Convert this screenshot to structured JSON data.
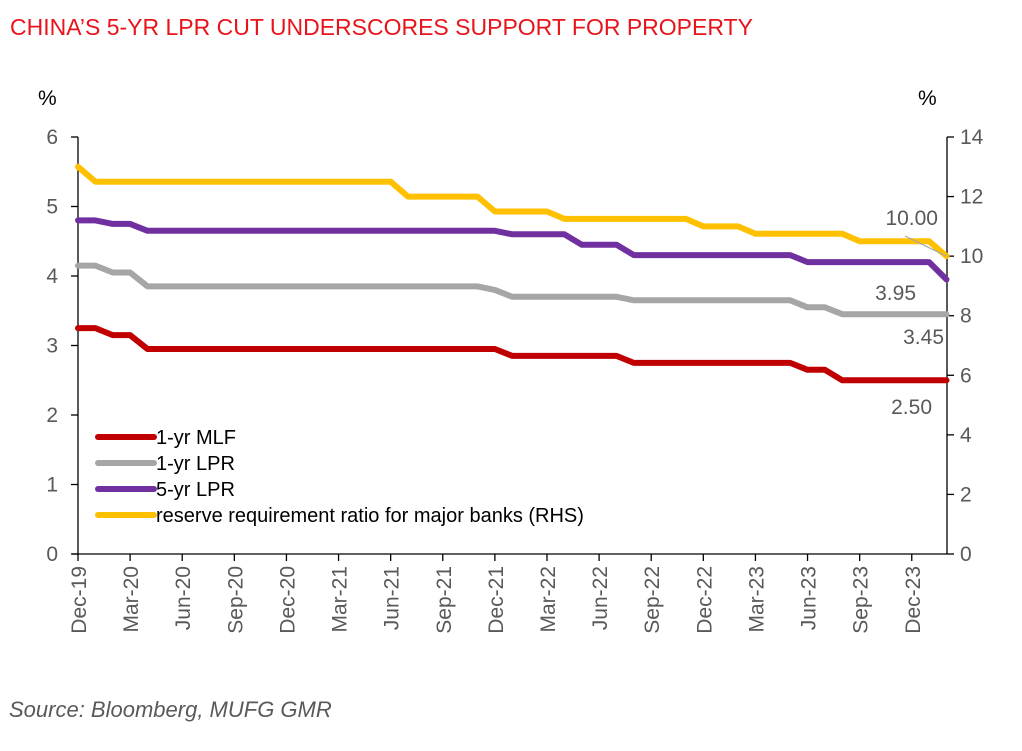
{
  "title": "CHINA’S 5-YR LPR CUT UNDERSCORES SUPPORT FOR PROPERTY",
  "source": "Source: Bloomberg, MUFG GMR",
  "chart_data": {
    "type": "line",
    "title": "CHINA’S 5-YR LPR CUT UNDERSCORES SUPPORT FOR PROPERTY",
    "ylabel": "%",
    "y2label": "%",
    "ylim": [
      0,
      6
    ],
    "y2lim": [
      0,
      14
    ],
    "yticks": [
      0,
      1,
      2,
      3,
      4,
      5,
      6
    ],
    "y2ticks": [
      0,
      2,
      4,
      6,
      8,
      10,
      12,
      14
    ],
    "grid": false,
    "legend_position": "bottom-left",
    "xtick_labels": [
      "Dec-19",
      "Mar-20",
      "Jun-20",
      "Sep-20",
      "Dec-20",
      "Mar-21",
      "Jun-21",
      "Sep-21",
      "Dec-21",
      "Mar-22",
      "Jun-22",
      "Sep-22",
      "Dec-22",
      "Mar-23",
      "Jun-23",
      "Sep-23",
      "Dec-23"
    ],
    "x": [
      "Dec-19",
      "Jan-20",
      "Feb-20",
      "Mar-20",
      "Apr-20",
      "May-20",
      "Jun-20",
      "Jul-20",
      "Aug-20",
      "Sep-20",
      "Oct-20",
      "Nov-20",
      "Dec-20",
      "Jan-21",
      "Feb-21",
      "Mar-21",
      "Apr-21",
      "May-21",
      "Jun-21",
      "Jul-21",
      "Aug-21",
      "Sep-21",
      "Oct-21",
      "Nov-21",
      "Dec-21",
      "Jan-22",
      "Feb-22",
      "Mar-22",
      "Apr-22",
      "May-22",
      "Jun-22",
      "Jul-22",
      "Aug-22",
      "Sep-22",
      "Oct-22",
      "Nov-22",
      "Dec-22",
      "Jan-23",
      "Feb-23",
      "Mar-23",
      "Apr-23",
      "May-23",
      "Jun-23",
      "Jul-23",
      "Aug-23",
      "Sep-23",
      "Oct-23",
      "Nov-23",
      "Dec-23",
      "Jan-24",
      "Feb-24"
    ],
    "series": [
      {
        "name": "1-yr MLF",
        "axis": "left",
        "color": "#c00000",
        "values": [
          3.25,
          3.25,
          3.15,
          3.15,
          2.95,
          2.95,
          2.95,
          2.95,
          2.95,
          2.95,
          2.95,
          2.95,
          2.95,
          2.95,
          2.95,
          2.95,
          2.95,
          2.95,
          2.95,
          2.95,
          2.95,
          2.95,
          2.95,
          2.95,
          2.95,
          2.85,
          2.85,
          2.85,
          2.85,
          2.85,
          2.85,
          2.85,
          2.75,
          2.75,
          2.75,
          2.75,
          2.75,
          2.75,
          2.75,
          2.75,
          2.75,
          2.75,
          2.65,
          2.65,
          2.5,
          2.5,
          2.5,
          2.5,
          2.5,
          2.5,
          2.5
        ]
      },
      {
        "name": "1-yr LPR",
        "axis": "left",
        "color": "#a6a6a6",
        "values": [
          4.15,
          4.15,
          4.05,
          4.05,
          3.85,
          3.85,
          3.85,
          3.85,
          3.85,
          3.85,
          3.85,
          3.85,
          3.85,
          3.85,
          3.85,
          3.85,
          3.85,
          3.85,
          3.85,
          3.85,
          3.85,
          3.85,
          3.85,
          3.85,
          3.8,
          3.7,
          3.7,
          3.7,
          3.7,
          3.7,
          3.7,
          3.7,
          3.65,
          3.65,
          3.65,
          3.65,
          3.65,
          3.65,
          3.65,
          3.65,
          3.65,
          3.65,
          3.55,
          3.55,
          3.45,
          3.45,
          3.45,
          3.45,
          3.45,
          3.45,
          3.45
        ]
      },
      {
        "name": "5-yr LPR",
        "axis": "left",
        "color": "#7030a0",
        "values": [
          4.8,
          4.8,
          4.75,
          4.75,
          4.65,
          4.65,
          4.65,
          4.65,
          4.65,
          4.65,
          4.65,
          4.65,
          4.65,
          4.65,
          4.65,
          4.65,
          4.65,
          4.65,
          4.65,
          4.65,
          4.65,
          4.65,
          4.65,
          4.65,
          4.65,
          4.6,
          4.6,
          4.6,
          4.6,
          4.45,
          4.45,
          4.45,
          4.3,
          4.3,
          4.3,
          4.3,
          4.3,
          4.3,
          4.3,
          4.3,
          4.3,
          4.3,
          4.2,
          4.2,
          4.2,
          4.2,
          4.2,
          4.2,
          4.2,
          4.2,
          3.95
        ]
      },
      {
        "name": "reserve requirement ratio for major banks (RHS)",
        "axis": "right",
        "color": "#ffc000",
        "values": [
          13.0,
          12.5,
          12.5,
          12.5,
          12.5,
          12.5,
          12.5,
          12.5,
          12.5,
          12.5,
          12.5,
          12.5,
          12.5,
          12.5,
          12.5,
          12.5,
          12.5,
          12.5,
          12.5,
          12.0,
          12.0,
          12.0,
          12.0,
          12.0,
          11.5,
          11.5,
          11.5,
          11.5,
          11.25,
          11.25,
          11.25,
          11.25,
          11.25,
          11.25,
          11.25,
          11.25,
          11.0,
          11.0,
          11.0,
          10.75,
          10.75,
          10.75,
          10.75,
          10.75,
          10.75,
          10.5,
          10.5,
          10.5,
          10.5,
          10.5,
          10.0
        ]
      }
    ],
    "annotations": [
      {
        "text": "10.00",
        "series": "reserve requirement ratio for major banks (RHS)"
      },
      {
        "text": "3.95",
        "series": "5-yr LPR"
      },
      {
        "text": "3.45",
        "series": "1-yr LPR"
      },
      {
        "text": "2.50",
        "series": "1-yr MLF"
      }
    ]
  }
}
